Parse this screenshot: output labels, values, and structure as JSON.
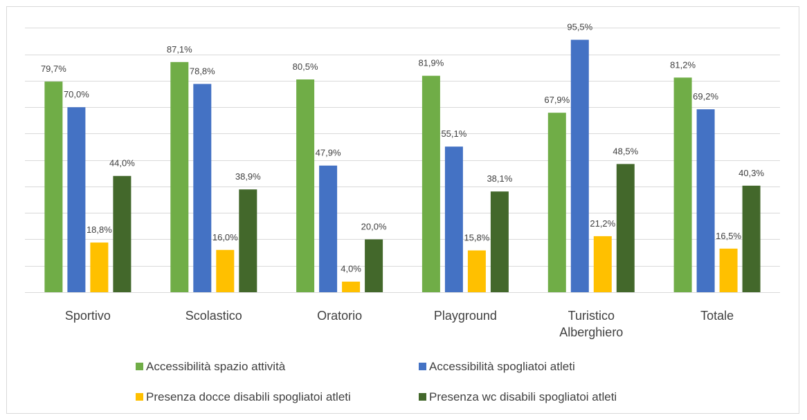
{
  "chart_data": {
    "type": "bar",
    "title": "",
    "xlabel": "",
    "ylabel": "",
    "ylim": [
      0,
      100
    ],
    "grid": true,
    "legend_position": "bottom",
    "categories": [
      [
        "Sportivo"
      ],
      [
        "Scolastico"
      ],
      [
        "Oratorio"
      ],
      [
        "Playground"
      ],
      [
        "Turistico",
        "Alberghiero"
      ],
      [
        "Totale"
      ]
    ],
    "series": [
      {
        "name": "Accessibilità spazio attività",
        "color": "#70ad47",
        "values": [
          79.7,
          87.1,
          80.5,
          81.9,
          67.9,
          81.2
        ],
        "labels": [
          "79,7%",
          "87,1%",
          "80,5%",
          "81,9%",
          "67,9%",
          "81,2%"
        ]
      },
      {
        "name": "Accessibilità spogliatoi atleti",
        "color": "#4472c4",
        "values": [
          70.0,
          78.8,
          47.9,
          55.1,
          95.5,
          69.2
        ],
        "labels": [
          "70,0%",
          "78,8%",
          "47,9%",
          "55,1%",
          "95,5%",
          "69,2%"
        ]
      },
      {
        "name": "Presenza docce disabili spogliatoi atleti",
        "color": "#ffc000",
        "values": [
          18.8,
          16.0,
          4.0,
          15.8,
          21.2,
          16.5
        ],
        "labels": [
          "18,8%",
          "16,0%",
          "4,0%",
          "15,8%",
          "21,2%",
          "16,5%"
        ]
      },
      {
        "name": "Presenza wc disabili spogliatoi atleti",
        "color": "#43682b",
        "values": [
          44.0,
          38.9,
          20.0,
          38.1,
          48.5,
          40.3
        ],
        "labels": [
          "44,0%",
          "38,9%",
          "20,0%",
          "38,1%",
          "48,5%",
          "40,3%"
        ]
      }
    ]
  }
}
